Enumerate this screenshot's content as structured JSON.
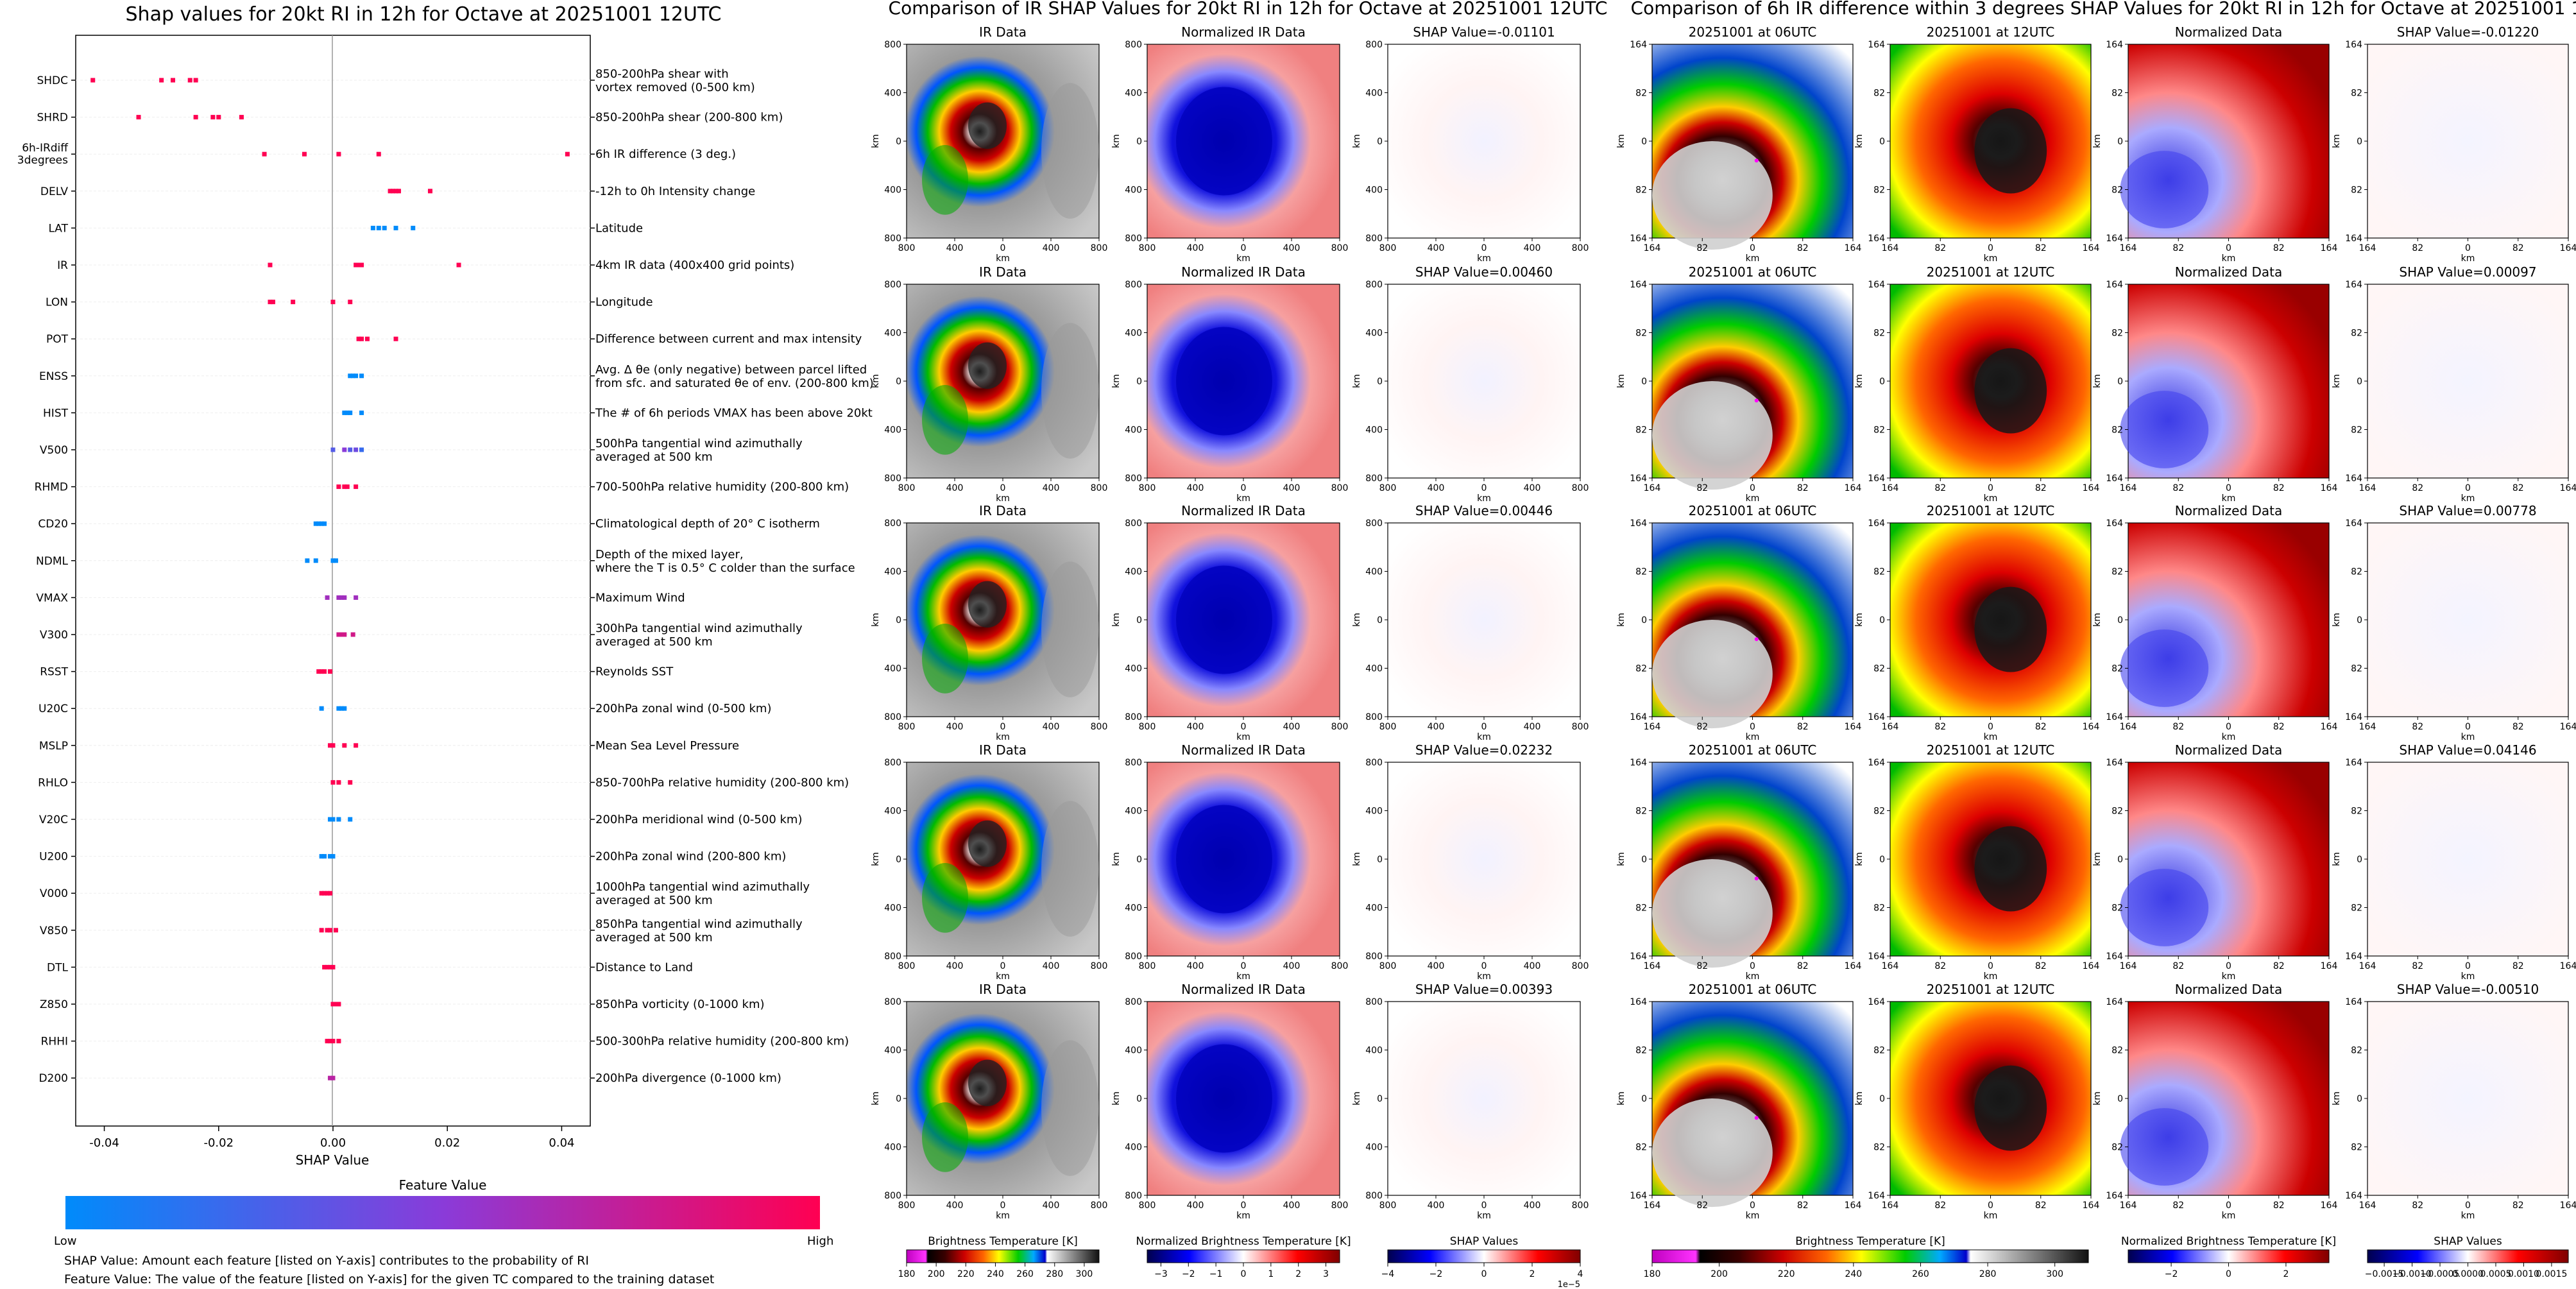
{
  "chart_data": [
    {
      "type": "scatter",
      "title": "Shap values for 20kt RI in 12h for Octave at 20251001 12UTC",
      "xlabel": "SHAP Value",
      "xlim": [
        -0.045,
        0.045
      ],
      "xticks": [
        "-0.04",
        "-0.02",
        "0.00",
        "0.02",
        "0.04"
      ],
      "xtick_values": [
        -0.04,
        -0.02,
        0,
        0.02,
        0.04
      ],
      "features": [
        {
          "code": "SHDC",
          "code2": "",
          "desc": "850-200hPa shear with",
          "desc2": "vortex removed (0-500 km)",
          "points": [
            [
              -0.042,
              1
            ],
            [
              -0.03,
              1
            ],
            [
              -0.028,
              1
            ],
            [
              -0.025,
              1
            ],
            [
              -0.024,
              1
            ]
          ]
        },
        {
          "code": "SHRD",
          "code2": "",
          "desc": "850-200hPa shear (200-800 km)",
          "desc2": "",
          "points": [
            [
              -0.034,
              1
            ],
            [
              -0.024,
              1
            ],
            [
              -0.021,
              1
            ],
            [
              -0.02,
              1
            ],
            [
              -0.016,
              1
            ]
          ]
        },
        {
          "code": "6h-IRdiff",
          "code2": "3degrees",
          "desc": "6h IR difference (3 deg.)",
          "desc2": "",
          "points": [
            [
              -0.012,
              1
            ],
            [
              -0.005,
              1
            ],
            [
              0.001,
              1
            ],
            [
              0.008,
              1
            ],
            [
              0.041,
              1
            ]
          ]
        },
        {
          "code": "DELV",
          "code2": "",
          "desc": "-12h to 0h Intensity change",
          "desc2": "",
          "points": [
            [
              0.01,
              1
            ],
            [
              0.0105,
              1
            ],
            [
              0.011,
              1
            ],
            [
              0.0115,
              1
            ],
            [
              0.017,
              1
            ]
          ]
        },
        {
          "code": "LAT",
          "code2": "",
          "desc": "Latitude",
          "desc2": "",
          "points": [
            [
              0.007,
              0
            ],
            [
              0.008,
              0
            ],
            [
              0.009,
              0
            ],
            [
              0.011,
              0
            ],
            [
              0.014,
              0
            ]
          ]
        },
        {
          "code": "IR",
          "code2": "",
          "desc": "4km IR data (400x400 grid points)",
          "desc2": "",
          "points": [
            [
              -0.011,
              1
            ],
            [
              0.004,
              1
            ],
            [
              0.0045,
              1
            ],
            [
              0.005,
              1
            ],
            [
              0.022,
              1
            ]
          ]
        },
        {
          "code": "LON",
          "code2": "",
          "desc": "Longitude",
          "desc2": "",
          "points": [
            [
              -0.011,
              1
            ],
            [
              -0.0105,
              1
            ],
            [
              -0.007,
              1
            ],
            [
              0.0,
              1
            ],
            [
              0.003,
              1
            ]
          ]
        },
        {
          "code": "POT",
          "code2": "",
          "desc": "Difference between current and max intensity",
          "desc2": "",
          "points": [
            [
              0.0045,
              1
            ],
            [
              0.005,
              1
            ],
            [
              0.006,
              1
            ],
            [
              0.011,
              1
            ]
          ]
        },
        {
          "code": "ENSS",
          "code2": "",
          "desc": "Avg. Δ θe (only negative) between parcel lifted",
          "desc2": "from sfc. and saturated θe of env. (200-800 km)",
          "points": [
            [
              0.003,
              0
            ],
            [
              0.0035,
              0
            ],
            [
              0.004,
              0
            ],
            [
              0.005,
              0
            ]
          ]
        },
        {
          "code": "HIST",
          "code2": "",
          "desc": "The # of 6h periods VMAX has been above 20kt",
          "desc2": "",
          "points": [
            [
              0.002,
              0
            ],
            [
              0.0025,
              0
            ],
            [
              0.003,
              0
            ],
            [
              0.005,
              0
            ]
          ]
        },
        {
          "code": "V500",
          "code2": "",
          "desc": "500hPa tangential wind azimuthally",
          "desc2": "averaged at 500 km",
          "points": [
            [
              0.0,
              0.3
            ],
            [
              0.002,
              0.5
            ],
            [
              0.003,
              0.3
            ],
            [
              0.004,
              0.4
            ],
            [
              0.005,
              0.2
            ]
          ]
        },
        {
          "code": "RHMD",
          "code2": "",
          "desc": "700-500hPa relative humidity (200-800 km)",
          "desc2": "",
          "points": [
            [
              0.001,
              1
            ],
            [
              0.002,
              1
            ],
            [
              0.0025,
              1
            ],
            [
              0.004,
              1
            ]
          ]
        },
        {
          "code": "CD20",
          "code2": "",
          "desc": "Climatological depth of 20° C isotherm",
          "desc2": "",
          "points": [
            [
              -0.003,
              0
            ],
            [
              -0.0025,
              0
            ],
            [
              -0.002,
              0
            ],
            [
              -0.0015,
              0
            ]
          ]
        },
        {
          "code": "NDML",
          "code2": "",
          "desc": "Depth of the mixed layer,",
          "desc2": "where the T is 0.5° C colder than the surface",
          "points": [
            [
              -0.0045,
              0
            ],
            [
              -0.003,
              0
            ],
            [
              0.0,
              0
            ],
            [
              0.0005,
              0
            ]
          ]
        },
        {
          "code": "VMAX",
          "code2": "",
          "desc": "Maximum Wind",
          "desc2": "",
          "points": [
            [
              -0.001,
              0.6
            ],
            [
              0.001,
              0.6
            ],
            [
              0.0015,
              0.6
            ],
            [
              0.002,
              0.6
            ],
            [
              0.004,
              0.6
            ]
          ]
        },
        {
          "code": "V300",
          "code2": "",
          "desc": "300hPa tangential wind azimuthally",
          "desc2": "averaged at 500 km",
          "points": [
            [
              0.001,
              0.8
            ],
            [
              0.0015,
              0.8
            ],
            [
              0.002,
              0.8
            ],
            [
              0.0035,
              0.8
            ]
          ]
        },
        {
          "code": "RSST",
          "code2": "",
          "desc": "Reynolds SST",
          "desc2": "",
          "points": [
            [
              -0.0025,
              1
            ],
            [
              -0.002,
              1
            ],
            [
              -0.0015,
              1
            ],
            [
              -0.0005,
              1
            ]
          ]
        },
        {
          "code": "U20C",
          "code2": "",
          "desc": "200hPa zonal wind (0-500 km)",
          "desc2": "",
          "points": [
            [
              -0.002,
              0
            ],
            [
              0.001,
              0
            ],
            [
              0.0015,
              0
            ],
            [
              0.002,
              0
            ]
          ]
        },
        {
          "code": "MSLP",
          "code2": "",
          "desc": "Mean Sea Level Pressure",
          "desc2": "",
          "points": [
            [
              -0.0005,
              1
            ],
            [
              0.0,
              1
            ],
            [
              0.002,
              1
            ],
            [
              0.004,
              1
            ]
          ]
        },
        {
          "code": "RHLO",
          "code2": "",
          "desc": "850-700hPa relative humidity (200-800 km)",
          "desc2": "",
          "points": [
            [
              0.0,
              1
            ],
            [
              0.001,
              1
            ],
            [
              0.003,
              1
            ]
          ]
        },
        {
          "code": "V20C",
          "code2": "",
          "desc": "200hPa meridional wind (0-500 km)",
          "desc2": "",
          "points": [
            [
              -0.0005,
              0
            ],
            [
              0.0,
              0
            ],
            [
              0.001,
              0
            ],
            [
              0.003,
              0
            ]
          ]
        },
        {
          "code": "U200",
          "code2": "",
          "desc": "200hPa zonal wind (200-800 km)",
          "desc2": "",
          "points": [
            [
              -0.002,
              0
            ],
            [
              -0.0015,
              0
            ],
            [
              -0.0005,
              0
            ],
            [
              0.0,
              0
            ]
          ]
        },
        {
          "code": "V000",
          "code2": "",
          "desc": "1000hPa tangential wind azimuthally",
          "desc2": "averaged at 500 km",
          "points": [
            [
              -0.002,
              1
            ],
            [
              -0.0015,
              1
            ],
            [
              -0.001,
              1
            ],
            [
              -0.0005,
              1
            ]
          ]
        },
        {
          "code": "V850",
          "code2": "",
          "desc": "850hPa tangential wind azimuthally",
          "desc2": "averaged at 500 km",
          "points": [
            [
              -0.002,
              1
            ],
            [
              -0.001,
              1
            ],
            [
              -0.0005,
              1
            ],
            [
              0.0005,
              1
            ]
          ]
        },
        {
          "code": "DTL",
          "code2": "",
          "desc": "Distance to Land",
          "desc2": "",
          "points": [
            [
              -0.0015,
              1
            ],
            [
              -0.001,
              1
            ],
            [
              -0.0005,
              1
            ],
            [
              0.0,
              1
            ]
          ]
        },
        {
          "code": "Z850",
          "code2": "",
          "desc": "850hPa vorticity (0-1000 km)",
          "desc2": "",
          "points": [
            [
              0.0,
              1
            ],
            [
              0.0005,
              1
            ],
            [
              0.001,
              1
            ]
          ]
        },
        {
          "code": "RHHI",
          "code2": "",
          "desc": "500-300hPa relative humidity (200-800 km)",
          "desc2": "",
          "points": [
            [
              -0.001,
              1
            ],
            [
              -0.0005,
              1
            ],
            [
              0.0,
              1
            ],
            [
              0.001,
              1
            ]
          ]
        },
        {
          "code": "D200",
          "code2": "",
          "desc": "200hPa divergence (0-1000 km)",
          "desc2": "",
          "points": [
            [
              -0.0005,
              0.7
            ],
            [
              0.0,
              0.7
            ]
          ]
        }
      ],
      "colorbar": {
        "title": "Feature Value",
        "low": "Low",
        "high": "High",
        "colors": [
          "#008bfb",
          "#8a3bd9",
          "#ff0052"
        ]
      },
      "notes": [
        "SHAP Value: Amount each feature [listed on Y-axis] contributes to the probability of RI",
        "Feature Value: The value of the feature [listed on Y-axis] for the given TC compared to the training dataset"
      ]
    },
    {
      "type": "heatmap",
      "title": "Comparison of IR SHAP Values for 20kt RI in 12h for Octave at 20251001 12UTC",
      "axis_unit": "km",
      "panel_titles": [
        "IR Data",
        "Normalized IR Data"
      ],
      "shap_titles": [
        "SHAP Value=-0.01101",
        "SHAP Value=0.00460",
        "SHAP Value=0.00446",
        "SHAP Value=0.02232",
        "SHAP Value=0.00393"
      ],
      "yticks": [
        "800",
        "400",
        "0",
        "400",
        "800"
      ],
      "xticks": [
        "800",
        "400",
        "0",
        "400",
        "800"
      ],
      "colorbars": [
        {
          "label": "Brightness Temperature [K]",
          "ticks": [
            "180",
            "200",
            "220",
            "240",
            "260",
            "280",
            "300"
          ],
          "range": [
            180,
            310
          ]
        },
        {
          "label": "Normalized Brightness Temperature [K]",
          "ticks": [
            "−3",
            "−2",
            "−1",
            "0",
            "1",
            "2",
            "3"
          ],
          "range": [
            -3.5,
            3.5
          ]
        },
        {
          "label": "SHAP Values",
          "ticks": [
            "−4",
            "−2",
            "0",
            "2",
            "4"
          ],
          "range": [
            -4,
            4
          ],
          "offset": "1e−5"
        }
      ]
    },
    {
      "type": "heatmap",
      "title": "Comparison of 6h IR difference within 3 degrees SHAP Values for 20kt RI in 12h for Octave at 20251001 12UTC",
      "axis_unit": "km",
      "panel_titles": [
        "20251001 at 06UTC",
        "20251001 at 12UTC",
        "Normalized Data"
      ],
      "shap_titles": [
        "SHAP Value=-0.01220",
        "SHAP Value=0.00097",
        "SHAP Value=0.00778",
        "SHAP Value=0.04146",
        "SHAP Value=-0.00510"
      ],
      "yticks": [
        "164",
        "82",
        "0",
        "82",
        "164"
      ],
      "xticks": [
        "164",
        "82",
        "0",
        "82",
        "164"
      ],
      "colorbars": [
        {
          "label": "Brightness Temperature [K]",
          "ticks": [
            "180",
            "200",
            "220",
            "240",
            "260",
            "280",
            "300"
          ],
          "range": [
            180,
            310
          ]
        },
        {
          "label": "Normalized Brightness Temperature [K]",
          "ticks": [
            "−2",
            "0",
            "2"
          ],
          "range": [
            -3.5,
            3.5
          ]
        },
        {
          "label": "SHAP Values",
          "ticks": [
            "−0.0015",
            "−0.0010",
            "−0.0005",
            "0.0000",
            "0.0005",
            "0.0010",
            "0.0015"
          ],
          "range": [
            -0.0018,
            0.0018
          ]
        }
      ]
    }
  ]
}
